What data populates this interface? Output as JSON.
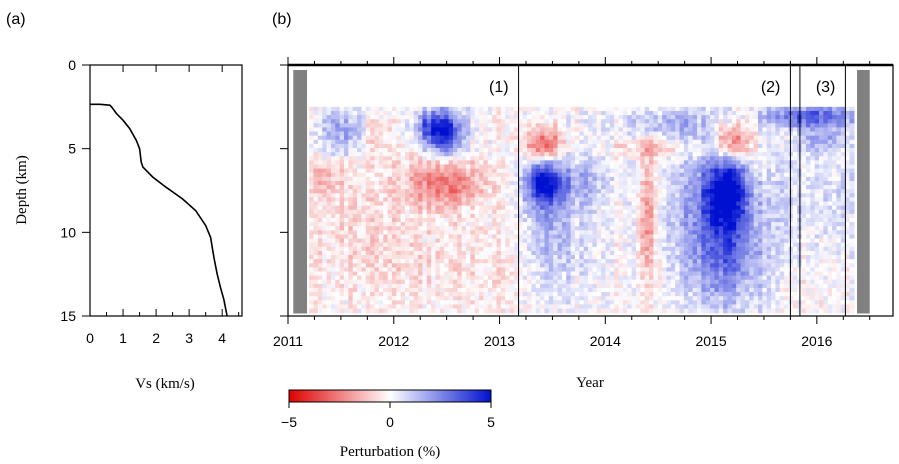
{
  "chart_data": [
    {
      "panel_label": "(a)",
      "type": "line",
      "xlabel": "Vs (km/s)",
      "ylabel": "Depth (km)",
      "xlim": [
        0,
        4.6
      ],
      "ylim": [
        0,
        15
      ],
      "y_inverted": true,
      "xticks": [
        0,
        1,
        2,
        3,
        4
      ],
      "yticks": [
        0,
        5,
        10,
        15
      ],
      "grid": false,
      "series": [
        {
          "x": [
            0.0,
            0.3,
            0.6,
            0.65,
            0.8,
            1.0,
            1.2,
            1.4,
            1.5,
            1.55,
            1.6,
            1.9,
            2.3,
            2.8,
            3.2,
            3.5,
            3.65,
            3.75,
            3.85,
            3.95,
            4.05,
            4.15
          ],
          "y": [
            2.35,
            2.35,
            2.4,
            2.5,
            2.9,
            3.3,
            3.8,
            4.5,
            5.0,
            5.8,
            6.1,
            6.7,
            7.3,
            8.0,
            8.7,
            9.6,
            10.3,
            11.5,
            12.5,
            13.3,
            14.0,
            15.0
          ]
        }
      ]
    },
    {
      "panel_label": "(b)",
      "type": "heatmap",
      "xlabel": "Year",
      "ylabel": "",
      "xlim": [
        2011.0,
        2016.72
      ],
      "ylim": [
        0,
        15
      ],
      "y_inverted": true,
      "xticks": [
        "2011",
        "2012",
        "2013",
        "2014",
        "2015",
        "2016"
      ],
      "yticks": [
        0,
        5,
        10,
        15
      ],
      "data_depth_range_km": [
        2.5,
        14.8
      ],
      "data_time_range": [
        2011.2,
        2016.35
      ],
      "no_data_bars": [
        [
          2011.05,
          2011.18
        ],
        [
          2016.38,
          2016.5
        ]
      ],
      "event_lines": [
        {
          "label": "(1)",
          "year": 2013.18
        },
        {
          "label": "(2)",
          "year": 2015.75
        },
        {
          "label": "",
          "year": 2015.84
        },
        {
          "label": "(3)",
          "year": 2016.27
        }
      ],
      "anomalies": [
        {
          "t": 2012.48,
          "z": 4.0,
          "st": 0.12,
          "sz": 0.9,
          "a": 5.0
        },
        {
          "t": 2012.3,
          "z": 3.6,
          "st": 0.08,
          "sz": 0.7,
          "a": 2.0
        },
        {
          "t": 2011.55,
          "z": 4.0,
          "st": 0.2,
          "sz": 0.9,
          "a": 2.0
        },
        {
          "t": 2011.8,
          "z": 4.2,
          "st": 0.1,
          "sz": 0.8,
          "a": -1.5
        },
        {
          "t": 2012.48,
          "z": 7.1,
          "st": 0.25,
          "sz": 1.0,
          "a": -2.8
        },
        {
          "t": 2011.35,
          "z": 6.7,
          "st": 0.1,
          "sz": 0.7,
          "a": -1.5
        },
        {
          "t": 2011.5,
          "z": 10.0,
          "st": 0.5,
          "sz": 3.0,
          "a": -0.6
        },
        {
          "t": 2012.6,
          "z": 12.0,
          "st": 0.6,
          "sz": 2.0,
          "a": -0.5
        },
        {
          "t": 2013.42,
          "z": 4.8,
          "st": 0.12,
          "sz": 0.7,
          "a": -3.6
        },
        {
          "t": 2013.42,
          "z": 7.0,
          "st": 0.13,
          "sz": 1.0,
          "a": 4.4
        },
        {
          "t": 2013.5,
          "z": 10.0,
          "st": 0.2,
          "sz": 2.5,
          "a": 1.6
        },
        {
          "t": 2014.4,
          "z": 9.0,
          "st": 0.05,
          "sz": 2.8,
          "a": -2.6
        },
        {
          "t": 2014.5,
          "z": 5.0,
          "st": 0.3,
          "sz": 0.4,
          "a": -1.4
        },
        {
          "t": 2015.15,
          "z": 7.5,
          "st": 0.15,
          "sz": 1.5,
          "a": 4.6
        },
        {
          "t": 2015.15,
          "z": 11.2,
          "st": 0.25,
          "sz": 2.3,
          "a": 2.8
        },
        {
          "t": 2014.9,
          "z": 8.0,
          "st": 0.3,
          "sz": 3.0,
          "a": 1.3
        },
        {
          "t": 2015.2,
          "z": 4.6,
          "st": 0.12,
          "sz": 0.8,
          "a": -3.2
        },
        {
          "t": 2014.6,
          "z": 3.5,
          "st": 0.3,
          "sz": 0.7,
          "a": 1.4
        },
        {
          "t": 2015.95,
          "z": 3.1,
          "st": 0.3,
          "sz": 0.5,
          "a": 3.6
        },
        {
          "t": 2016.05,
          "z": 4.5,
          "st": 0.15,
          "sz": 0.5,
          "a": 1.8
        },
        {
          "t": 2016.15,
          "z": 8.0,
          "st": 0.2,
          "sz": 2.0,
          "a": 0.8
        },
        {
          "t": 2015.7,
          "z": 8.0,
          "st": 0.1,
          "sz": 2.0,
          "a": 1.0
        },
        {
          "t": 2013.8,
          "z": 7.0,
          "st": 0.2,
          "sz": 1.0,
          "a": 1.2
        }
      ]
    }
  ],
  "colorbar": {
    "label": "Perturbation (%)",
    "min": -5,
    "max": 5,
    "ticks": [
      "−5",
      "0",
      "5"
    ],
    "color_low": "#e00000",
    "color_mid": "#ffffff",
    "color_high": "#0010d0"
  },
  "colors": {
    "no_data_bar": "#808080",
    "axis": "#000000",
    "line": "#000000"
  }
}
